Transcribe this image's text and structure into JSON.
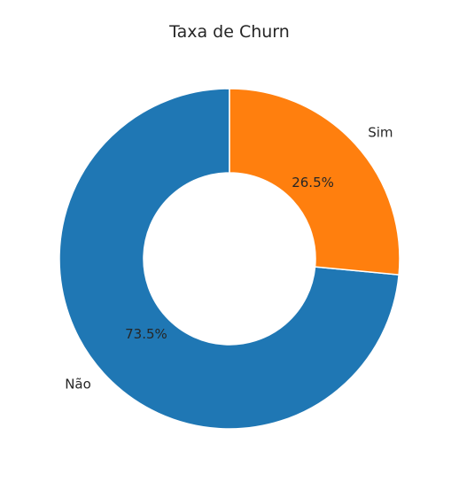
{
  "chart_data": {
    "type": "pie",
    "title": "Taxa de Churn",
    "donut": true,
    "categories": [
      "Não",
      "Sim"
    ],
    "values": [
      73.5,
      26.5
    ],
    "value_labels": [
      "73.5%",
      "26.5%"
    ],
    "colors": [
      "#1f77b4",
      "#ff7f0e"
    ],
    "start_angle_deg": 90,
    "direction": "counterclockwise"
  }
}
